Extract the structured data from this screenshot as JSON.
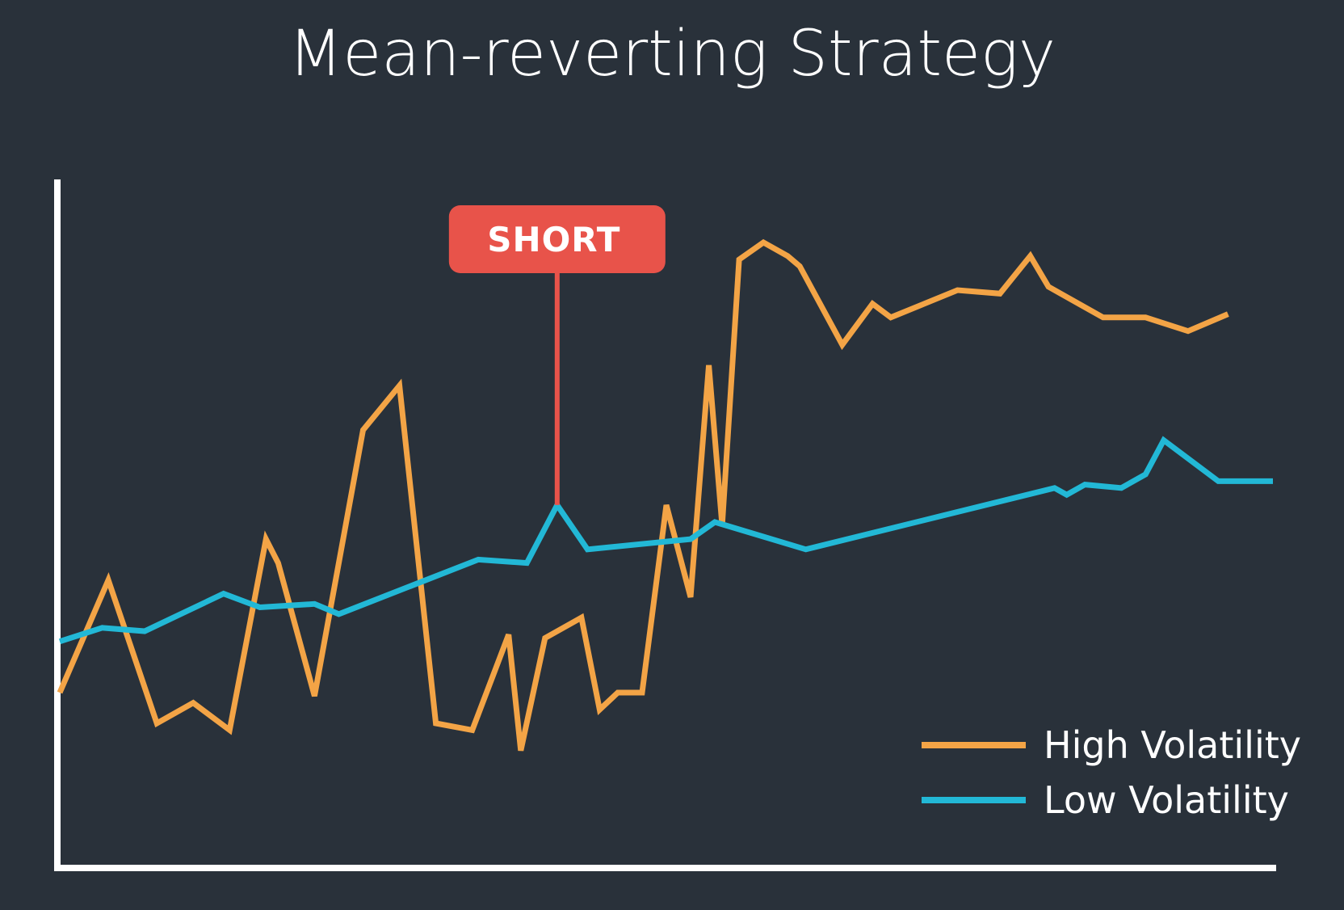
{
  "chart_data": {
    "type": "line",
    "title": "Mean-reverting Strategy",
    "xlabel": "",
    "ylabel": "",
    "grid": false,
    "legend_position": "bottom-right",
    "xlim": [
      0,
      100
    ],
    "ylim": [
      0,
      100
    ],
    "series": [
      {
        "name": "High Volatility",
        "color": "#f3a446",
        "x": [
          0,
          4,
          8,
          11,
          14,
          17,
          18,
          21,
          25,
          28,
          31,
          34,
          37,
          38,
          40,
          43,
          44.5,
          46,
          48,
          50,
          52,
          53.5,
          54.6,
          56,
          58,
          60,
          61,
          64.5,
          67,
          68.5,
          74,
          77.5,
          80,
          81.5,
          86,
          89.5,
          93,
          96.3
        ],
        "y": [
          25,
          41.5,
          20.5,
          23.5,
          19.5,
          47.5,
          44,
          24.5,
          63.5,
          70,
          20.5,
          19.5,
          33.5,
          16.5,
          33,
          36,
          22.5,
          25,
          25,
          52.5,
          39,
          73,
          49.5,
          88.5,
          91,
          89,
          87.5,
          76,
          82,
          80,
          84,
          83.5,
          89,
          84.5,
          80,
          80,
          78,
          80.5
        ]
      },
      {
        "name": "Low Volatility",
        "color": "#22b8d6",
        "x": [
          0,
          3.5,
          7,
          13.5,
          16.5,
          21,
          23,
          34.5,
          38.5,
          41,
          43.5,
          52,
          54,
          61.5,
          82,
          83,
          84.5,
          87.5,
          89.5,
          91,
          95.5,
          100
        ],
        "y": [
          32.5,
          34.5,
          34,
          39.5,
          37.5,
          38,
          36.5,
          44.5,
          44,
          52.5,
          46,
          47.5,
          50,
          46,
          55,
          54,
          55.5,
          55,
          57,
          62,
          56,
          56
        ]
      }
    ],
    "annotations": [
      {
        "label": "SHORT",
        "series": "Low Volatility",
        "x": 41,
        "y": 52.5,
        "color": "#e8534a"
      }
    ]
  }
}
